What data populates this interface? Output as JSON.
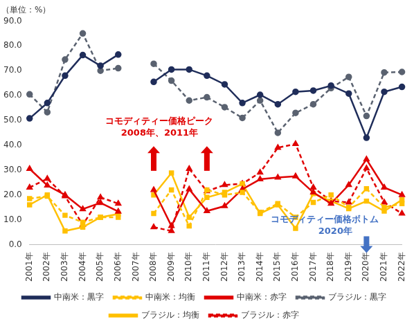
{
  "chart_data": {
    "type": "line",
    "title": "（単位：%）",
    "categories": [
      "2001年",
      "2002年",
      "2003年",
      "2004年",
      "2005年",
      "2006年",
      "2007年",
      "2008年",
      "2009年",
      "2010年",
      "2011年",
      "2012年",
      "2013年",
      "2014年",
      "2015年",
      "2016年",
      "2017年",
      "2018年",
      "2019年",
      "2020年",
      "2021年",
      "2022年"
    ],
    "series": [
      {
        "name": "中南米：黒字",
        "color": "#1f2d5a",
        "marker": "circle",
        "line_style": "solid",
        "values": [
          50.8,
          57,
          68,
          76.3,
          72,
          76.5,
          null,
          65.5,
          70.5,
          70.5,
          68,
          64.5,
          57,
          60.3,
          56.5,
          61.5,
          62,
          64,
          60.8,
          43,
          61.5,
          63.5
        ]
      },
      {
        "name": "中南米：均衡",
        "color": "#ffc000",
        "marker": "square",
        "line_style": "dashed",
        "values": [
          18.5,
          19.5,
          11.8,
          9,
          11,
          11,
          null,
          12.5,
          22,
          7.5,
          22,
          20,
          21,
          13,
          16.5,
          11,
          17,
          20,
          15,
          22.5,
          15,
          16.5
        ]
      },
      {
        "name": "中南米：赤字",
        "color": "#e00000",
        "marker": "triangle",
        "line_style": "solid",
        "values": [
          30.5,
          23.8,
          20,
          14.3,
          16.8,
          13.3,
          null,
          22,
          7.5,
          22.3,
          13.5,
          15.5,
          22.3,
          26.3,
          27,
          27.5,
          21,
          16.5,
          24,
          34.3,
          23,
          20
        ]
      },
      {
        "name": "ブラジル：黒字",
        "color": "#5a6270",
        "marker": "circle",
        "line_style": "dashed",
        "values": [
          60.5,
          53.3,
          74.5,
          85,
          70,
          71,
          null,
          72.8,
          66,
          58,
          59.3,
          55.3,
          51,
          58,
          45,
          53,
          56.5,
          63,
          67.5,
          51.8,
          69.3,
          69.5
        ]
      },
      {
        "name": "ブラジル：均衡",
        "color": "#ffc000",
        "marker": "square",
        "line_style": "solid",
        "values": [
          16,
          20,
          5.5,
          7,
          11,
          12.3,
          null,
          20,
          28.8,
          11,
          19,
          21,
          24.5,
          12.5,
          16,
          6.5,
          20.5,
          17.5,
          14.5,
          17.5,
          13.5,
          18
        ]
      },
      {
        "name": "ブラジル：赤字",
        "color": "#e00000",
        "marker": "triangle",
        "line_style": "dashed",
        "values": [
          23,
          26.5,
          19.5,
          8,
          19,
          16.5,
          null,
          7,
          5.5,
          30.5,
          21.5,
          24,
          24.5,
          29,
          39,
          40.5,
          23,
          17.5,
          17,
          30.7,
          17,
          12.5
        ]
      }
    ],
    "ylim": [
      0,
      90
    ],
    "yticks": [
      {
        "value": 0,
        "label": "0.0"
      },
      {
        "value": 10,
        "label": "10.0"
      },
      {
        "value": 20,
        "label": "20.0"
      },
      {
        "value": 30,
        "label": "30.0"
      },
      {
        "value": 40,
        "label": "40.0"
      },
      {
        "value": 50,
        "label": "50.0"
      },
      {
        "value": 60,
        "label": "60.0"
      },
      {
        "value": 70,
        "label": "70.0"
      },
      {
        "value": 80,
        "label": "80.0"
      },
      {
        "value": 90,
        "label": "90.0"
      }
    ],
    "grid": false,
    "legend": "bottom",
    "annotations": [
      {
        "lines": [
          "コモディティー価格ピーク",
          "2008年、2011年"
        ],
        "color": "#e00000",
        "arrows": [
          "2008年",
          "2011年"
        ],
        "direction": "up"
      },
      {
        "lines": [
          "コモディティー価格ボトム",
          "2020年"
        ],
        "color": "#4472c4",
        "arrows": [
          "2020年"
        ],
        "direction": "down"
      }
    ]
  }
}
